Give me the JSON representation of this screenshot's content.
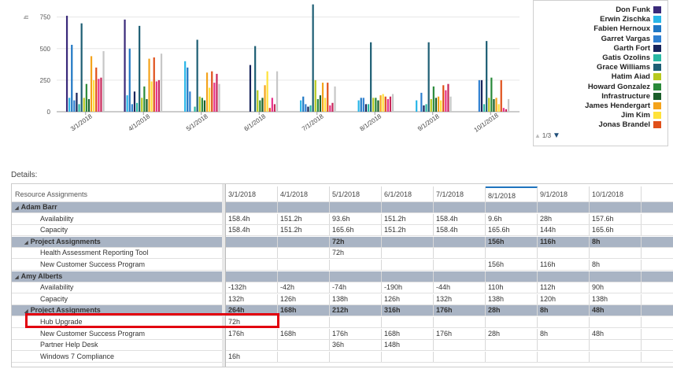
{
  "chart_data": {
    "type": "bar",
    "ylabel": "h",
    "yticks": [
      0,
      250,
      500,
      750
    ],
    "ylim": [
      0,
      860
    ],
    "categories": [
      "3/1/2018",
      "4/1/2018",
      "5/1/2018",
      "6/1/2018",
      "7/1/2018",
      "8/1/2018",
      "9/1/2018",
      "10/1/2018"
    ],
    "series": [
      {
        "name": "Don Funk",
        "color": "#3a2a7a",
        "values": [
          760,
          730,
          0,
          0,
          0,
          0,
          0,
          0
        ]
      },
      {
        "name": "Erwin Zischka",
        "color": "#29b6e8",
        "values": [
          110,
          130,
          400,
          0,
          90,
          90,
          90,
          0
        ]
      },
      {
        "name": "Fabien Hernoux",
        "color": "#1f77c4",
        "values": [
          530,
          500,
          350,
          0,
          120,
          110,
          0,
          0
        ]
      },
      {
        "name": "Garret Vargas",
        "color": "#2f80d1",
        "values": [
          90,
          60,
          160,
          0,
          60,
          110,
          150,
          250
        ]
      },
      {
        "name": "Garth Fort",
        "color": "#17245c",
        "values": [
          150,
          160,
          0,
          370,
          40,
          60,
          50,
          250
        ]
      },
      {
        "name": "Gatis Ozolins",
        "color": "#2ab9a4",
        "values": [
          60,
          70,
          40,
          0,
          50,
          60,
          60,
          60
        ]
      },
      {
        "name": "Grace Williams",
        "color": "#1d5e74",
        "values": [
          700,
          680,
          570,
          520,
          850,
          550,
          550,
          560
        ]
      },
      {
        "name": "Hatim Aiad",
        "color": "#b7c91f",
        "values": [
          110,
          110,
          120,
          170,
          250,
          110,
          100,
          110
        ]
      },
      {
        "name": "Howard Gonzalez",
        "color": "#2a8a3a",
        "values": [
          220,
          200,
          110,
          90,
          100,
          110,
          200,
          270
        ]
      },
      {
        "name": "Infrastructure",
        "color": "#1b5e2a",
        "values": [
          100,
          100,
          90,
          110,
          130,
          90,
          110,
          100
        ]
      },
      {
        "name": "James Hendergart",
        "color": "#f4a31b",
        "values": [
          440,
          420,
          310,
          210,
          230,
          130,
          120,
          110
        ]
      },
      {
        "name": "Jim Kim",
        "color": "#ffe23a",
        "values": [
          250,
          240,
          190,
          320,
          110,
          140,
          90,
          60
        ]
      },
      {
        "name": "Jonas Brandel",
        "color": "#e0501a",
        "values": [
          350,
          430,
          320,
          30,
          230,
          120,
          210,
          250
        ]
      },
      {
        "name": "",
        "color": "#e8318a",
        "values": [
          260,
          240,
          230,
          110,
          50,
          100,
          170,
          30
        ]
      },
      {
        "name": "",
        "color": "#c8285a",
        "values": [
          270,
          250,
          300,
          60,
          70,
          120,
          220,
          20
        ]
      },
      {
        "name": "",
        "color": "#c7c7c7",
        "values": [
          480,
          460,
          220,
          320,
          200,
          140,
          120,
          100
        ]
      }
    ]
  },
  "legend": {
    "items": [
      {
        "label": "Don Funk",
        "color": "#3a2a7a"
      },
      {
        "label": "Erwin Zischka",
        "color": "#29b6e8"
      },
      {
        "label": "Fabien Hernoux",
        "color": "#1f77c4"
      },
      {
        "label": "Garret Vargas",
        "color": "#2f80d1"
      },
      {
        "label": "Garth Fort",
        "color": "#17245c"
      },
      {
        "label": "Gatis Ozolins",
        "color": "#2ab9a4"
      },
      {
        "label": "Grace Williams",
        "color": "#1d5e74"
      },
      {
        "label": "Hatim Aiad",
        "color": "#b7c91f"
      },
      {
        "label": "Howard Gonzalez",
        "color": "#2a8a3a"
      },
      {
        "label": "Infrastructure",
        "color": "#1b5e2a"
      },
      {
        "label": "James Hendergart",
        "color": "#f4a31b"
      },
      {
        "label": "Jim Kim",
        "color": "#ffe23a"
      },
      {
        "label": "Jonas Brandel",
        "color": "#e0501a"
      }
    ],
    "pager": "1/3"
  },
  "details_label": "Details:",
  "grid": {
    "left_header": "Resource Assignments",
    "columns": [
      "3/1/2018",
      "4/1/2018",
      "5/1/2018",
      "6/1/2018",
      "7/1/2018",
      "8/1/2018",
      "9/1/2018",
      "10/1/2018"
    ],
    "selected_column": 5,
    "rows": [
      {
        "label": "Adam Barr",
        "type": "group",
        "level": 0,
        "cells": [
          "",
          "",
          "",
          "",
          "",
          "",
          "",
          ""
        ]
      },
      {
        "label": "Availability",
        "type": "data",
        "level": 1,
        "cells": [
          "158.4h",
          "151.2h",
          "93.6h",
          "151.2h",
          "158.4h",
          "9.6h",
          "28h",
          "157.6h"
        ]
      },
      {
        "label": "Capacity",
        "type": "data",
        "level": 1,
        "cells": [
          "158.4h",
          "151.2h",
          "165.6h",
          "151.2h",
          "158.4h",
          "165.6h",
          "144h",
          "165.6h"
        ]
      },
      {
        "label": "Project Assignments",
        "type": "subgroup",
        "level": 1,
        "cells": [
          "",
          "",
          "72h",
          "",
          "",
          "156h",
          "116h",
          "8h"
        ]
      },
      {
        "label": "Health Assessment Reporting Tool",
        "type": "data",
        "level": 2,
        "cells": [
          "",
          "",
          "72h",
          "",
          "",
          "",
          "",
          ""
        ]
      },
      {
        "label": "New Customer Success Program",
        "type": "data",
        "level": 2,
        "cells": [
          "",
          "",
          "",
          "",
          "",
          "156h",
          "116h",
          "8h"
        ]
      },
      {
        "label": "Amy Alberts",
        "type": "group",
        "level": 0,
        "cells": [
          "",
          "",
          "",
          "",
          "",
          "",
          "",
          ""
        ]
      },
      {
        "label": "Availability",
        "type": "data",
        "level": 1,
        "cells": [
          "-132h",
          "-42h",
          "-74h",
          "-190h",
          "-44h",
          "110h",
          "112h",
          "90h"
        ]
      },
      {
        "label": "Capacity",
        "type": "data",
        "level": 1,
        "cells": [
          "132h",
          "126h",
          "138h",
          "126h",
          "132h",
          "138h",
          "120h",
          "138h"
        ]
      },
      {
        "label": "Project Assignments",
        "type": "subgroup",
        "level": 1,
        "cells": [
          "264h",
          "168h",
          "212h",
          "316h",
          "176h",
          "28h",
          "8h",
          "48h"
        ]
      },
      {
        "label": "Hub Upgrade",
        "type": "data",
        "level": 2,
        "cells": [
          "72h",
          "",
          "",
          "",
          "",
          "",
          "",
          ""
        ]
      },
      {
        "label": "New Customer Success Program",
        "type": "data",
        "level": 2,
        "cells": [
          "176h",
          "168h",
          "176h",
          "168h",
          "176h",
          "28h",
          "8h",
          "48h"
        ]
      },
      {
        "label": "Partner Help Desk",
        "type": "data",
        "level": 2,
        "cells": [
          "",
          "",
          "36h",
          "148h",
          "",
          "",
          "",
          ""
        ]
      },
      {
        "label": "Windows 7 Compliance",
        "type": "data",
        "level": 2,
        "cells": [
          "16h",
          "",
          "",
          "",
          "",
          "",
          "",
          ""
        ]
      }
    ]
  }
}
